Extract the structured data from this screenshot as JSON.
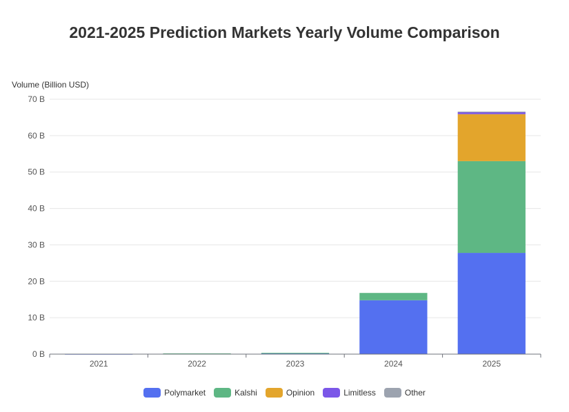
{
  "chart_data": {
    "type": "bar",
    "stacked": true,
    "title": "2021-2025 Prediction Markets Yearly Volume Comparison",
    "ylabel": "Volume (Billion USD)",
    "xlabel": "",
    "ylim": [
      0,
      70
    ],
    "yticks": [
      0,
      10,
      20,
      30,
      40,
      50,
      60,
      70
    ],
    "ytick_labels": [
      "0 B",
      "10 B",
      "20 B",
      "30 B",
      "40 B",
      "50 B",
      "60 B",
      "70 B"
    ],
    "categories": [
      "2021",
      "2022",
      "2023",
      "2024",
      "2025"
    ],
    "series": [
      {
        "name": "Polymarket",
        "color": "#5470F0",
        "values": [
          0.05,
          0.1,
          0.2,
          14.8,
          27.8
        ]
      },
      {
        "name": "Kalshi",
        "color": "#5EB784",
        "values": [
          0.05,
          0.1,
          0.15,
          2.0,
          25.2
        ]
      },
      {
        "name": "Opinion",
        "color": "#E3A52C",
        "values": [
          0,
          0,
          0,
          0,
          12.9
        ]
      },
      {
        "name": "Limitless",
        "color": "#7B57E8",
        "values": [
          0,
          0,
          0,
          0,
          0.5
        ]
      },
      {
        "name": "Other",
        "color": "#9CA3AF",
        "values": [
          0,
          0,
          0,
          0,
          0.2
        ]
      }
    ],
    "grid": true,
    "legend_position": "bottom-center"
  }
}
